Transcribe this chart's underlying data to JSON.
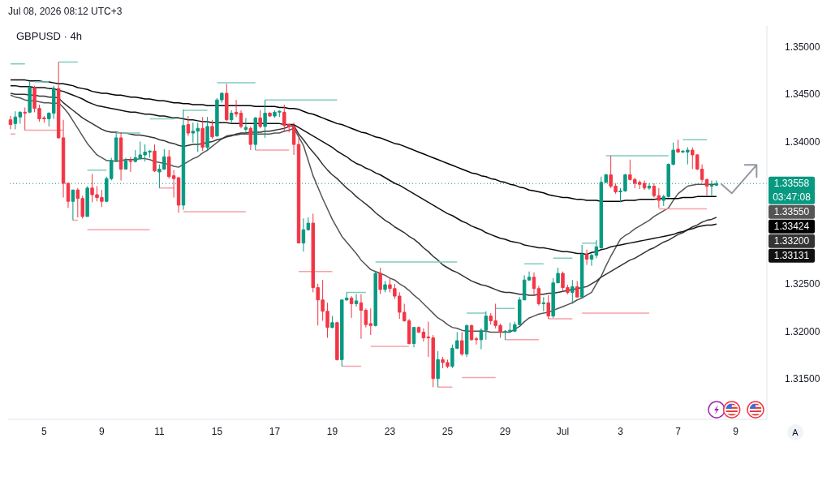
{
  "chart_data": {
    "type": "candlestick",
    "title": "GBPUSD · 4h",
    "categories": [
      null,
      null,
      null,
      null,
      null,
      null,
      null,
      "5",
      null,
      null,
      null,
      null,
      null,
      null,
      null,
      null,
      null,
      null,
      null,
      "9",
      null,
      null,
      null,
      null,
      null,
      null,
      null,
      null,
      null,
      null,
      null,
      "11",
      null,
      null,
      null,
      null,
      null,
      null,
      null,
      null,
      null,
      null,
      null,
      "15",
      null,
      null,
      null,
      null,
      null,
      null,
      null,
      null,
      null,
      null,
      null,
      "17",
      null,
      null,
      null,
      null,
      null,
      null,
      null,
      null,
      null,
      null,
      null,
      "19",
      null,
      null,
      null,
      null,
      null,
      null,
      null,
      null,
      null,
      null,
      null,
      "23",
      null,
      null,
      null,
      null,
      null,
      null,
      null,
      null,
      null,
      null,
      null,
      "25",
      null,
      null,
      null,
      null,
      null,
      null,
      null,
      null,
      null,
      null,
      null,
      "29",
      null,
      null,
      null,
      null,
      null,
      null,
      null,
      null,
      null,
      null,
      null,
      "Jul",
      null,
      null,
      null,
      null,
      null,
      null,
      null,
      null,
      null,
      null,
      null,
      "3",
      null,
      null,
      null,
      null,
      null,
      null,
      null,
      null,
      null,
      null,
      null,
      "7",
      null,
      null,
      null,
      null,
      null,
      null,
      null,
      null,
      null,
      null,
      null,
      "9",
      null,
      null,
      null,
      null,
      null,
      null
    ],
    "ohlc": [
      [
        1.3423,
        1.3427,
        1.3413,
        1.3418
      ],
      [
        1.3419,
        1.3432,
        1.3413,
        1.3426
      ],
      [
        1.3426,
        1.3432,
        1.3419,
        1.3431
      ],
      [
        1.3431,
        1.3436,
        1.3412,
        1.343
      ],
      [
        1.3431,
        1.3463,
        1.343,
        1.3457
      ],
      [
        1.3457,
        1.3459,
        1.3431,
        1.3435
      ],
      [
        1.3435,
        1.3439,
        1.3421,
        1.3424
      ],
      [
        1.3425,
        1.3427,
        1.342,
        1.3424
      ],
      [
        1.3424,
        1.3431,
        1.3416,
        1.343
      ],
      [
        1.343,
        1.3459,
        1.3424,
        1.3456
      ],
      [
        1.3456,
        1.3484,
        1.3403,
        1.3404
      ],
      [
        1.3404,
        1.3423,
        1.3341,
        1.3356
      ],
      [
        1.3356,
        1.3357,
        1.333,
        1.3337
      ],
      [
        1.3337,
        1.3349,
        1.3317,
        1.3349
      ],
      [
        1.3349,
        1.3351,
        1.332,
        1.334
      ],
      [
        1.334,
        1.3343,
        1.3319,
        1.3321
      ],
      [
        1.3321,
        1.3353,
        1.3321,
        1.3351
      ],
      [
        1.3351,
        1.3366,
        1.3336,
        1.3344
      ],
      [
        1.3344,
        1.3353,
        1.3337,
        1.3341
      ],
      [
        1.3341,
        1.3349,
        1.3331,
        1.3337
      ],
      [
        1.3337,
        1.3363,
        1.3336,
        1.3361
      ],
      [
        1.3361,
        1.3383,
        1.3359,
        1.338
      ],
      [
        1.338,
        1.3409,
        1.3379,
        1.3404
      ],
      [
        1.3404,
        1.341,
        1.3359,
        1.3371
      ],
      [
        1.3371,
        1.3383,
        1.3371,
        1.338
      ],
      [
        1.338,
        1.3384,
        1.3368,
        1.3379
      ],
      [
        1.3379,
        1.3391,
        1.3378,
        1.3383
      ],
      [
        1.3382,
        1.34,
        1.3381,
        1.3386
      ],
      [
        1.3386,
        1.3397,
        1.3379,
        1.3389
      ],
      [
        1.3389,
        1.3391,
        1.3383,
        1.339
      ],
      [
        1.339,
        1.3397,
        1.3368,
        1.3369
      ],
      [
        1.3368,
        1.3376,
        1.3351,
        1.3371
      ],
      [
        1.3371,
        1.3392,
        1.337,
        1.3384
      ],
      [
        1.3384,
        1.3391,
        1.3361,
        1.3363
      ],
      [
        1.3364,
        1.337,
        1.3341,
        1.3361
      ],
      [
        1.3362,
        1.3362,
        1.3325,
        1.3333
      ],
      [
        1.3333,
        1.3434,
        1.3328,
        1.3417
      ],
      [
        1.3418,
        1.3427,
        1.3406,
        1.3409
      ],
      [
        1.3409,
        1.342,
        1.3399,
        1.3411
      ],
      [
        1.3411,
        1.342,
        1.3389,
        1.3414
      ],
      [
        1.3414,
        1.3426,
        1.339,
        1.3394
      ],
      [
        1.3394,
        1.3426,
        1.339,
        1.3416
      ],
      [
        1.3416,
        1.3423,
        1.3403,
        1.3405
      ],
      [
        1.3406,
        1.3446,
        1.3405,
        1.3444
      ],
      [
        1.3444,
        1.3452,
        1.3441,
        1.3451
      ],
      [
        1.3451,
        1.3461,
        1.3422,
        1.3423
      ],
      [
        1.3423,
        1.3433,
        1.3419,
        1.343
      ],
      [
        1.3431,
        1.3444,
        1.3426,
        1.3429
      ],
      [
        1.343,
        1.3433,
        1.3414,
        1.3416
      ],
      [
        1.3413,
        1.3425,
        1.341,
        1.3415
      ],
      [
        1.3414,
        1.3416,
        1.3391,
        1.3397
      ],
      [
        1.3397,
        1.3426,
        1.3391,
        1.3425
      ],
      [
        1.3425,
        1.3433,
        1.3414,
        1.3416
      ],
      [
        1.3416,
        1.3444,
        1.3404,
        1.343
      ],
      [
        1.343,
        1.3431,
        1.3426,
        1.3427
      ],
      [
        1.3427,
        1.3433,
        1.3425,
        1.3431
      ],
      [
        1.3431,
        1.3433,
        1.3426,
        1.3432
      ],
      [
        1.3431,
        1.3439,
        1.341,
        1.3417
      ],
      [
        1.3418,
        1.3419,
        1.341,
        1.3416
      ],
      [
        1.3416,
        1.342,
        1.3386,
        1.3397
      ],
      [
        1.3397,
        1.3404,
        1.3293,
        1.3293
      ],
      [
        1.3293,
        1.3319,
        1.3284,
        1.3307
      ],
      [
        1.3307,
        1.332,
        1.3306,
        1.3314
      ],
      [
        1.3314,
        1.3324,
        1.3241,
        1.3246
      ],
      [
        1.3246,
        1.325,
        1.3206,
        1.3233
      ],
      [
        1.3233,
        1.3254,
        1.3211,
        1.3221
      ],
      [
        1.3221,
        1.323,
        1.3193,
        1.3204
      ],
      [
        1.3204,
        1.3216,
        1.3203,
        1.3209
      ],
      [
        1.3209,
        1.321,
        1.3169,
        1.317
      ],
      [
        1.317,
        1.3233,
        1.3163,
        1.3233
      ],
      [
        1.3233,
        1.3241,
        1.3232,
        1.3235
      ],
      [
        1.3235,
        1.3237,
        1.3214,
        1.3229
      ],
      [
        1.3229,
        1.3239,
        1.3226,
        1.3232
      ],
      [
        1.323,
        1.3239,
        1.3192,
        1.3222
      ],
      [
        1.3222,
        1.3224,
        1.3204,
        1.3207
      ],
      [
        1.3208,
        1.3224,
        1.3196,
        1.3206
      ],
      [
        1.3206,
        1.3263,
        1.3205,
        1.3261
      ],
      [
        1.3261,
        1.3267,
        1.3239,
        1.3244
      ],
      [
        1.3244,
        1.3253,
        1.3241,
        1.3249
      ],
      [
        1.3249,
        1.3256,
        1.3241,
        1.3245
      ],
      [
        1.3245,
        1.325,
        1.3234,
        1.3237
      ],
      [
        1.3237,
        1.3241,
        1.3213,
        1.322
      ],
      [
        1.322,
        1.3229,
        1.321,
        1.3211
      ],
      [
        1.3211,
        1.3213,
        1.3186,
        1.3187
      ],
      [
        1.3187,
        1.3204,
        1.3183,
        1.3204
      ],
      [
        1.3204,
        1.3205,
        1.3198,
        1.3199
      ],
      [
        1.3199,
        1.3203,
        1.3189,
        1.3193
      ],
      [
        1.3194,
        1.321,
        1.3173,
        1.3193
      ],
      [
        1.3193,
        1.3196,
        1.3141,
        1.315
      ],
      [
        1.315,
        1.3179,
        1.3141,
        1.317
      ],
      [
        1.317,
        1.3173,
        1.3161,
        1.3167
      ],
      [
        1.3167,
        1.317,
        1.3161,
        1.3163
      ],
      [
        1.3163,
        1.3186,
        1.3161,
        1.3182
      ],
      [
        1.3182,
        1.3199,
        1.3181,
        1.319
      ],
      [
        1.319,
        1.3199,
        1.3174,
        1.3176
      ],
      [
        1.3176,
        1.3207,
        1.3173,
        1.3206
      ],
      [
        1.3206,
        1.3207,
        1.319,
        1.3191
      ],
      [
        1.3192,
        1.3194,
        1.3186,
        1.3191
      ],
      [
        1.3191,
        1.3203,
        1.3181,
        1.3201
      ],
      [
        1.3201,
        1.3221,
        1.3191,
        1.3216
      ],
      [
        1.3216,
        1.3219,
        1.3207,
        1.3211
      ],
      [
        1.3211,
        1.3229,
        1.3203,
        1.3206
      ],
      [
        1.3206,
        1.3208,
        1.3193,
        1.3199
      ],
      [
        1.3199,
        1.3201,
        1.3191,
        1.32
      ],
      [
        1.32,
        1.3209,
        1.3199,
        1.3201
      ],
      [
        1.32,
        1.321,
        1.3199,
        1.3207
      ],
      [
        1.3207,
        1.3236,
        1.3206,
        1.3233
      ],
      [
        1.3233,
        1.3259,
        1.3233,
        1.3254
      ],
      [
        1.3254,
        1.3263,
        1.3253,
        1.3257
      ],
      [
        1.3257,
        1.3262,
        1.3239,
        1.3245
      ],
      [
        1.3245,
        1.3248,
        1.3227,
        1.3229
      ],
      [
        1.3229,
        1.3236,
        1.3221,
        1.323
      ],
      [
        1.323,
        1.3238,
        1.3213,
        1.3216
      ],
      [
        1.3216,
        1.3256,
        1.3214,
        1.3251
      ],
      [
        1.3251,
        1.3267,
        1.3251,
        1.3261
      ],
      [
        1.3261,
        1.3263,
        1.3243,
        1.3246
      ],
      [
        1.3246,
        1.3249,
        1.3239,
        1.3241
      ],
      [
        1.3241,
        1.3254,
        1.3229,
        1.3247
      ],
      [
        1.3247,
        1.3253,
        1.3236,
        1.3236
      ],
      [
        1.3236,
        1.3291,
        1.3236,
        1.3281
      ],
      [
        1.3281,
        1.3286,
        1.327,
        1.3276
      ],
      [
        1.3276,
        1.3282,
        1.3269,
        1.328
      ],
      [
        1.328,
        1.3296,
        1.3277,
        1.3289
      ],
      [
        1.3288,
        1.3363,
        1.3287,
        1.3357
      ],
      [
        1.3357,
        1.3366,
        1.3356,
        1.3365
      ],
      [
        1.3365,
        1.3385,
        1.3351,
        1.3353
      ],
      [
        1.3353,
        1.3356,
        1.3345,
        1.3347
      ],
      [
        1.3347,
        1.3351,
        1.3336,
        1.3348
      ],
      [
        1.3348,
        1.3366,
        1.3347,
        1.3365
      ],
      [
        1.3365,
        1.3381,
        1.3359,
        1.336
      ],
      [
        1.336,
        1.3362,
        1.3351,
        1.3356
      ],
      [
        1.3357,
        1.3359,
        1.335,
        1.3355
      ],
      [
        1.3356,
        1.3359,
        1.3349,
        1.3351
      ],
      [
        1.3351,
        1.3356,
        1.3349,
        1.3353
      ],
      [
        1.3353,
        1.3356,
        1.3341,
        1.3343
      ],
      [
        1.3343,
        1.3351,
        1.333,
        1.3338
      ],
      [
        1.3338,
        1.3344,
        1.3332,
        1.3342
      ],
      [
        1.3342,
        1.3377,
        1.3341,
        1.3376
      ],
      [
        1.3376,
        1.3399,
        1.3375,
        1.3391
      ],
      [
        1.3392,
        1.3402,
        1.3388,
        1.3389
      ],
      [
        1.3389,
        1.3391,
        1.3388,
        1.339
      ],
      [
        1.3389,
        1.3394,
        1.3376,
        1.3391
      ],
      [
        1.3391,
        1.3394,
        1.3371,
        1.3386
      ],
      [
        1.3386,
        1.3387,
        1.337,
        1.3371
      ],
      [
        1.3371,
        1.3376,
        1.3357,
        1.336
      ],
      [
        1.336,
        1.3361,
        1.3343,
        1.3353
      ],
      [
        1.3353,
        1.3359,
        1.3343,
        1.3354
      ],
      [
        1.3354,
        1.3359,
        1.3353,
        1.33558
      ],
      null,
      null,
      null,
      null,
      null,
      null,
      null,
      null,
      null,
      null
    ],
    "colors": [
      "#f23645",
      "#089981",
      "#089981",
      "#f23645",
      "#089981",
      "#f23645",
      "#f23645",
      "#f23645",
      "#089981",
      "#089981",
      "#f23645",
      "#f23645",
      "#f23645",
      "#089981",
      "#f23645",
      "#f23645",
      "#089981",
      "#f23645",
      "#f23645",
      "#f23645",
      "#089981",
      "#089981",
      "#089981",
      "#f23645",
      "#089981",
      "#f23645",
      "#089981",
      "#089981",
      "#089981",
      "#089981",
      "#f23645",
      "#089981",
      "#089981",
      "#f23645",
      "#f23645",
      "#f23645",
      "#089981",
      "#f23645",
      "#089981",
      "#089981",
      "#f23645",
      "#089981",
      "#f23645",
      "#089981",
      "#089981",
      "#f23645",
      "#089981",
      "#f23645",
      "#f23645",
      "#089981",
      "#f23645",
      "#089981",
      "#f23645",
      "#089981",
      "#f23645",
      "#089981",
      "#089981",
      "#f23645",
      "#f23645",
      "#f23645",
      "#f23645",
      "#089981",
      "#089981",
      "#f23645",
      "#f23645",
      "#f23645",
      "#f23645",
      "#089981",
      "#f23645",
      "#089981",
      "#089981",
      "#f23645",
      "#089981",
      "#f23645",
      "#f23645",
      "#f23645",
      "#089981",
      "#f23645",
      "#089981",
      "#f23645",
      "#f23645",
      "#f23645",
      "#f23645",
      "#f23645",
      "#089981",
      "#f23645",
      "#f23645",
      "#f23645",
      "#f23645",
      "#089981",
      "#f23645",
      "#f23645",
      "#089981",
      "#089981",
      "#f23645",
      "#089981",
      "#f23645",
      "#f23645",
      "#089981",
      "#089981",
      "#f23645",
      "#f23645",
      "#f23645",
      "#089981",
      "#089981",
      "#089981",
      "#089981",
      "#089981",
      "#089981",
      "#f23645",
      "#f23645",
      "#089981",
      "#f23645",
      "#089981",
      "#089981",
      "#f23645",
      "#f23645",
      "#089981",
      "#f23645",
      "#089981",
      "#f23645",
      "#089981",
      "#089981",
      "#089981",
      "#089981",
      "#f23645",
      "#f23645",
      "#089981",
      "#089981",
      "#f23645",
      "#f23645",
      "#f23645",
      "#f23645",
      "#089981",
      "#f23645",
      "#f23645",
      "#089981",
      "#089981",
      "#089981",
      "#f23645",
      "#089981",
      "#089981",
      "#f23645",
      "#f23645",
      "#f23645",
      "#f23645",
      "#089981",
      "#089981",
      null,
      null,
      null,
      null,
      null,
      null,
      null,
      null,
      null,
      null
    ],
    "ylim": [
      1.3107,
      1.3522
    ],
    "yticks": [
      {
        "value": 1.315,
        "label": "1.31500"
      },
      {
        "value": 1.32,
        "label": "1.32000"
      },
      {
        "value": 1.325,
        "label": "1.32500"
      },
      {
        "value": 1.34,
        "label": "1.34000"
      },
      {
        "value": 1.345,
        "label": "1.34500"
      },
      {
        "value": 1.35,
        "label": "1.35000"
      }
    ],
    "series": [
      {
        "type": "line",
        "color": "#555555",
        "values": [
          1.3449,
          1.3447,
          1.3446,
          1.3444,
          1.3443,
          1.3443,
          1.3442,
          1.3441,
          1.3441,
          1.344,
          1.3441,
          1.3436,
          1.343,
          1.3422,
          1.3414,
          1.3406,
          1.3398,
          1.3392,
          1.3386,
          1.3383,
          1.338,
          1.338,
          1.3379,
          1.338,
          1.3381,
          1.3381,
          1.3381,
          1.3382,
          1.3382,
          1.3381,
          1.3379,
          1.3378,
          1.3377,
          1.3376,
          1.3374,
          1.3373,
          1.3376,
          1.3379,
          1.3382,
          1.3384,
          1.3388,
          1.3391,
          1.3395,
          1.3399,
          1.3403,
          1.3406,
          1.3407,
          1.3407,
          1.3408,
          1.3408,
          1.3408,
          1.3408,
          1.3408,
          1.3408,
          1.3408,
          1.3409,
          1.3409,
          1.3411,
          1.3412,
          1.3414,
          1.3405,
          1.3396,
          1.338,
          1.3364,
          1.3352,
          1.334,
          1.3329,
          1.3318,
          1.3309,
          1.33,
          1.3294,
          1.3288,
          1.3282,
          1.3275,
          1.327,
          1.3265,
          1.3263,
          1.3261,
          1.3259,
          1.3256,
          1.3254,
          1.325,
          1.3247,
          1.3243,
          1.3238,
          1.3234,
          1.3229,
          1.3224,
          1.3219,
          1.3214,
          1.3211,
          1.3207,
          1.3204,
          1.3203,
          1.3201,
          1.32,
          1.32,
          1.32,
          1.32,
          1.32,
          1.3199,
          1.3199,
          1.3199,
          1.3199,
          1.3199,
          1.3202,
          1.3205,
          1.321,
          1.3214,
          1.3216,
          1.3218,
          1.3219,
          1.322,
          1.3222,
          1.3224,
          1.3226,
          1.3228,
          1.323,
          1.3233,
          1.3235,
          1.3238,
          1.3241,
          1.325,
          1.3258,
          1.3269,
          1.3279,
          1.3288,
          1.3297,
          1.3301,
          1.3304,
          1.3308,
          1.3311,
          1.3314,
          1.3317,
          1.3321,
          1.3324,
          1.3327,
          1.333,
          1.3338,
          1.3345,
          1.3349,
          1.3353,
          1.3354,
          1.3355,
          1.3355,
          1.3355,
          1.3355,
          1.3355,
          null,
          null,
          null,
          null,
          null,
          null,
          null,
          null,
          null,
          null
        ]
      },
      {
        "type": "line",
        "color": "#000000",
        "values": [
          1.3465,
          1.3465,
          1.3465,
          1.3465,
          1.3464,
          1.3464,
          1.3464,
          1.3463,
          1.3463,
          1.3462,
          1.3461,
          1.3461,
          1.346,
          1.3459,
          1.3457,
          1.3456,
          1.3455,
          1.3453,
          1.3452,
          1.3451,
          1.3451,
          1.345,
          1.3449,
          1.3449,
          1.3448,
          1.3447,
          1.3447,
          1.3446,
          1.3445,
          1.3445,
          1.3444,
          1.3443,
          1.3443,
          1.3442,
          1.3441,
          1.3441,
          1.344,
          1.344,
          1.3439,
          1.3439,
          1.3439,
          1.3438,
          1.3438,
          1.3438,
          1.3438,
          1.3438,
          1.3438,
          1.3438,
          1.3438,
          1.3438,
          1.3438,
          1.3437,
          1.3437,
          1.3437,
          1.3437,
          1.3437,
          1.3436,
          1.3436,
          1.3435,
          1.3435,
          1.3434,
          1.3432,
          1.343,
          1.3429,
          1.3427,
          1.3425,
          1.3423,
          1.3421,
          1.3419,
          1.3418,
          1.3416,
          1.3414,
          1.3412,
          1.341,
          1.3409,
          1.3407,
          1.3405,
          1.3404,
          1.3402,
          1.34,
          1.3398,
          1.3397,
          1.3395,
          1.3393,
          1.3391,
          1.3389,
          1.3387,
          1.3385,
          1.3383,
          1.3381,
          1.3379,
          1.3377,
          1.3375,
          1.3373,
          1.3371,
          1.3369,
          1.3367,
          1.3366,
          1.3364,
          1.3363,
          1.3361,
          1.336,
          1.3358,
          1.3357,
          1.3355,
          1.3354,
          1.3352,
          1.3351,
          1.3349,
          1.3348,
          1.3347,
          1.3346,
          1.3344,
          1.3343,
          1.3342,
          1.3341,
          1.3341,
          1.334,
          1.3339,
          1.3339,
          1.3338,
          1.3338,
          1.3338,
          1.3337,
          1.3337,
          1.3337,
          1.3337,
          1.3337,
          1.3338,
          1.3338,
          1.3338,
          1.3339,
          1.3339,
          1.3339,
          1.3339,
          1.334,
          1.334,
          1.334,
          1.334,
          1.334,
          1.3341,
          1.3341,
          1.3341,
          1.3342,
          1.3342,
          1.3342,
          1.3342,
          1.3342,
          null,
          null,
          null,
          null,
          null,
          null,
          null,
          null,
          null,
          null
        ]
      },
      {
        "type": "line",
        "color": "#333333",
        "values": [
          1.3451,
          1.345,
          1.345,
          1.345,
          1.3449,
          1.3449,
          1.3448,
          1.3448,
          1.3447,
          1.3447,
          1.3446,
          1.3441,
          1.3437,
          1.3433,
          1.3429,
          1.3425,
          1.3422,
          1.3419,
          1.3416,
          1.3413,
          1.3411,
          1.341,
          1.341,
          1.3409,
          1.3409,
          1.3408,
          1.3407,
          1.3407,
          1.3406,
          1.3405,
          1.3404,
          1.3402,
          1.3401,
          1.3399,
          1.3398,
          1.3396,
          1.3395,
          1.3396,
          1.3397,
          1.3397,
          1.3398,
          1.3399,
          1.34,
          1.3402,
          1.3403,
          1.3405,
          1.3406,
          1.3408,
          1.3409,
          1.3409,
          1.341,
          1.341,
          1.341,
          1.3411,
          1.3411,
          1.3412,
          1.3413,
          1.3414,
          1.3416,
          1.3417,
          1.3408,
          1.3402,
          1.3395,
          1.3389,
          1.3383,
          1.3376,
          1.337,
          1.3365,
          1.3361,
          1.3356,
          1.3351,
          1.3347,
          1.3342,
          1.3338,
          1.3334,
          1.333,
          1.3325,
          1.3321,
          1.3317,
          1.3314,
          1.331,
          1.3307,
          1.3304,
          1.33,
          1.3297,
          1.3293,
          1.3288,
          1.3284,
          1.3279,
          1.3275,
          1.327,
          1.3267,
          1.3264,
          1.3262,
          1.3259,
          1.3256,
          1.3253,
          1.3251,
          1.3249,
          1.3248,
          1.3246,
          1.3244,
          1.3242,
          1.3241,
          1.3241,
          1.324,
          1.3239,
          1.3239,
          1.3238,
          1.3238,
          1.3239,
          1.3239,
          1.324,
          1.324,
          1.3241,
          1.3242,
          1.3243,
          1.3244,
          1.3245,
          1.3246,
          1.3247,
          1.325,
          1.3253,
          1.3257,
          1.326,
          1.3263,
          1.3266,
          1.3269,
          1.3272,
          1.3275,
          1.3277,
          1.328,
          1.3283,
          1.3286,
          1.3288,
          1.3291,
          1.3294,
          1.3296,
          1.3299,
          1.3302,
          1.3304,
          1.3307,
          1.331,
          1.3312,
          1.3315,
          1.3317,
          1.3318,
          1.332,
          null,
          null,
          null,
          null,
          null,
          null,
          null,
          null,
          null,
          null
        ]
      },
      {
        "type": "line",
        "color": "#111111",
        "values": [
          1.3459,
          1.3459,
          1.3458,
          1.3458,
          1.3458,
          1.3457,
          1.3457,
          1.3457,
          1.3456,
          1.3456,
          1.3454,
          1.3453,
          1.3451,
          1.3449,
          1.3447,
          1.3445,
          1.3442,
          1.344,
          1.3438,
          1.3437,
          1.3436,
          1.3435,
          1.3434,
          1.3433,
          1.3432,
          1.3431,
          1.3431,
          1.343,
          1.3429,
          1.3429,
          1.3428,
          1.3427,
          1.3427,
          1.3426,
          1.3425,
          1.3425,
          1.3424,
          1.3423,
          1.3423,
          1.3422,
          1.3421,
          1.3421,
          1.342,
          1.342,
          1.342,
          1.342,
          1.3419,
          1.3419,
          1.3419,
          1.3419,
          1.3419,
          1.3419,
          1.3419,
          1.3419,
          1.3419,
          1.3419,
          1.3419,
          1.3418,
          1.3418,
          1.3418,
          1.3415,
          1.3412,
          1.3409,
          1.3406,
          1.3403,
          1.34,
          1.3397,
          1.3394,
          1.339,
          1.3387,
          1.3384,
          1.338,
          1.3377,
          1.3375,
          1.3372,
          1.337,
          1.3367,
          1.3365,
          1.3362,
          1.3359,
          1.3356,
          1.3354,
          1.3351,
          1.3348,
          1.3345,
          1.3342,
          1.3339,
          1.3336,
          1.3333,
          1.333,
          1.3327,
          1.3324,
          1.3322,
          1.3319,
          1.3316,
          1.3314,
          1.3311,
          1.3309,
          1.3307,
          1.3304,
          1.3302,
          1.33,
          1.3298,
          1.3297,
          1.3295,
          1.3294,
          1.3293,
          1.3291,
          1.329,
          1.3289,
          1.3288,
          1.3288,
          1.3287,
          1.3286,
          1.3285,
          1.3284,
          1.3284,
          1.3283,
          1.3282,
          1.3282,
          1.3281,
          1.3283,
          1.3284,
          1.3286,
          1.3287,
          1.3289,
          1.329,
          1.3291,
          1.3292,
          1.3293,
          1.3294,
          1.3295,
          1.3296,
          1.3297,
          1.3298,
          1.3299,
          1.33,
          1.3301,
          1.3302,
          1.3304,
          1.3305,
          1.3307,
          1.3308,
          1.331,
          1.3311,
          1.3312,
          1.3312,
          1.3313,
          null,
          null,
          null,
          null,
          null,
          null,
          null,
          null,
          null,
          null
        ]
      },
      {
        "type": "line",
        "color": "#80cbbf",
        "values": [
          1.3482,
          1.3482,
          1.3482,
          1.3482,
          null,
          1.3463,
          1.3463,
          1.3463,
          1.3463,
          null,
          1.3484,
          1.3484,
          1.3484,
          1.3484,
          1.3484,
          null,
          1.337,
          1.337,
          1.337,
          1.337,
          1.337,
          null,
          1.3409,
          1.3409,
          1.3409,
          1.3409,
          1.3409,
          1.3409,
          null,
          1.3424,
          1.3424,
          1.3424,
          1.3424,
          1.3424,
          1.3424,
          null,
          1.3433,
          1.3433,
          1.3433,
          1.3433,
          1.3433,
          1.3433,
          null,
          1.3462,
          1.3462,
          1.3462,
          1.3462,
          1.3462,
          1.3462,
          1.3462,
          1.3462,
          1.3462,
          null,
          1.3444,
          1.3444,
          1.3444,
          1.3444,
          1.3444,
          1.3444,
          1.3444,
          1.3444,
          1.3444,
          1.3444,
          1.3444,
          1.3444,
          1.3444,
          1.3444,
          1.3444,
          1.3444,
          null,
          1.3241,
          1.3241,
          1.3241,
          1.3241,
          1.3241,
          null,
          1.3273,
          1.3273,
          1.3273,
          1.3273,
          1.3273,
          1.3273,
          1.3273,
          1.3273,
          1.3273,
          1.3273,
          1.3273,
          1.3273,
          1.3273,
          1.3273,
          1.3273,
          1.3273,
          1.3273,
          1.3273,
          null,
          1.3219,
          1.3219,
          1.3219,
          1.3219,
          1.3219,
          null,
          1.3224,
          1.3224,
          1.3224,
          1.3224,
          1.3224,
          null,
          1.3271,
          1.3271,
          1.3271,
          1.3271,
          1.3271,
          null,
          1.3277,
          1.3277,
          1.3277,
          1.3277,
          1.3277,
          null,
          1.3293,
          1.3293,
          1.3293,
          1.3293,
          null,
          1.3385,
          1.3385,
          1.3385,
          1.3385,
          1.3385,
          1.3385,
          1.3385,
          1.3385,
          1.3385,
          1.3385,
          1.3385,
          1.3385,
          1.3385,
          1.3385,
          null,
          null,
          1.3402,
          1.3402,
          1.3402,
          1.3402,
          1.3402,
          1.3402,
          null,
          null,
          null,
          null,
          null,
          null,
          null,
          null,
          null,
          null,
          null,
          null
        ]
      },
      {
        "type": "line",
        "color": "#f7a1a9",
        "values": [
          1.3408,
          1.3408,
          null,
          1.3412,
          1.3412,
          1.3412,
          1.3412,
          1.3412,
          1.3412,
          1.3412,
          1.3412,
          1.3412,
          null,
          1.3317,
          1.3317,
          null,
          1.3307,
          1.3307,
          1.3307,
          1.3307,
          1.3307,
          1.3307,
          1.3307,
          1.3307,
          1.3307,
          1.3307,
          1.3307,
          1.3307,
          1.3307,
          1.3307,
          null,
          1.3351,
          1.3351,
          1.3351,
          1.3351,
          null,
          1.3326,
          1.3326,
          1.3326,
          1.3326,
          1.3326,
          1.3326,
          1.3326,
          1.3326,
          1.3326,
          1.3326,
          1.3326,
          1.3326,
          1.3326,
          1.3326,
          null,
          1.3391,
          1.3391,
          1.3391,
          1.3391,
          1.3391,
          1.3391,
          1.3391,
          1.3391,
          null,
          1.3263,
          1.3263,
          1.3263,
          1.3263,
          1.3263,
          1.3263,
          1.3263,
          1.3263,
          null,
          1.3163,
          1.3163,
          1.3163,
          1.3163,
          1.3163,
          null,
          1.3184,
          1.3184,
          1.3184,
          1.3184,
          1.3184,
          1.3184,
          1.3184,
          1.3184,
          1.3184,
          null,
          null,
          null,
          null,
          null,
          1.3141,
          1.3141,
          1.3141,
          1.3141,
          null,
          1.3151,
          1.3151,
          1.3151,
          1.3151,
          1.3151,
          1.3151,
          1.3151,
          1.3151,
          null,
          1.3191,
          1.3191,
          1.3191,
          1.3191,
          1.3191,
          1.3191,
          1.3191,
          1.3191,
          null,
          1.3213,
          1.3213,
          1.3213,
          1.3213,
          1.3213,
          1.3213,
          null,
          1.3219,
          1.3219,
          1.3219,
          1.3219,
          1.3219,
          1.3219,
          1.3219,
          1.3219,
          1.3219,
          1.3219,
          1.3219,
          1.3219,
          1.3219,
          1.3219,
          1.3219,
          null,
          1.3329,
          1.3329,
          1.3329,
          1.3329,
          1.3329,
          1.3329,
          1.3329,
          1.3329,
          1.3329,
          1.3329,
          1.3329,
          null,
          null,
          null,
          null,
          null,
          null,
          null,
          null,
          null,
          null,
          null,
          null
        ]
      }
    ],
    "ref_lines": [
      {
        "axis": "y",
        "value": 1.33558,
        "label": "1.33558",
        "color": "#089981",
        "line_style": "dotted"
      }
    ],
    "annotations": [
      "Jul 08, 2026 08:12 UTC+3",
      "03:47:08",
      "A",
      "1.33550",
      "1.33424",
      "1.33200",
      "1.33131"
    ]
  }
}
